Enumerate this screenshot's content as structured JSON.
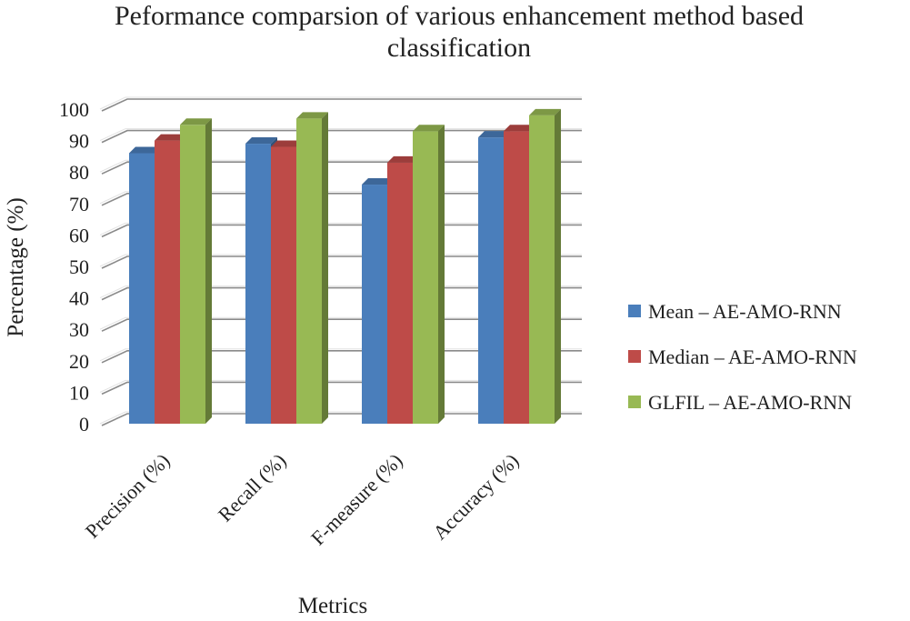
{
  "chart_data": {
    "type": "bar",
    "title": "Peformance comparsion of various enhancement method based classification",
    "xlabel": "Metrics",
    "ylabel": "Percentage (%)",
    "ylim": [
      0,
      100
    ],
    "yticks": [
      0,
      10,
      20,
      30,
      40,
      50,
      60,
      70,
      80,
      90,
      100
    ],
    "grid": true,
    "legend_position": "right",
    "categories": [
      "Precision (%)",
      "Recall (%)",
      "F-measure (%)",
      "Accuracy (%)"
    ],
    "series": [
      {
        "name": "Mean – AE-AMO-RNN",
        "color": "#4a7ebb",
        "values": [
          86,
          89,
          76,
          91
        ]
      },
      {
        "name": "Median – AE-AMO-RNN",
        "color": "#be4b48",
        "values": [
          90,
          88,
          83,
          93
        ]
      },
      {
        "name": "GLFIL – AE-AMO-RNN",
        "color": "#98b954",
        "values": [
          95,
          97,
          93,
          98
        ]
      }
    ]
  }
}
